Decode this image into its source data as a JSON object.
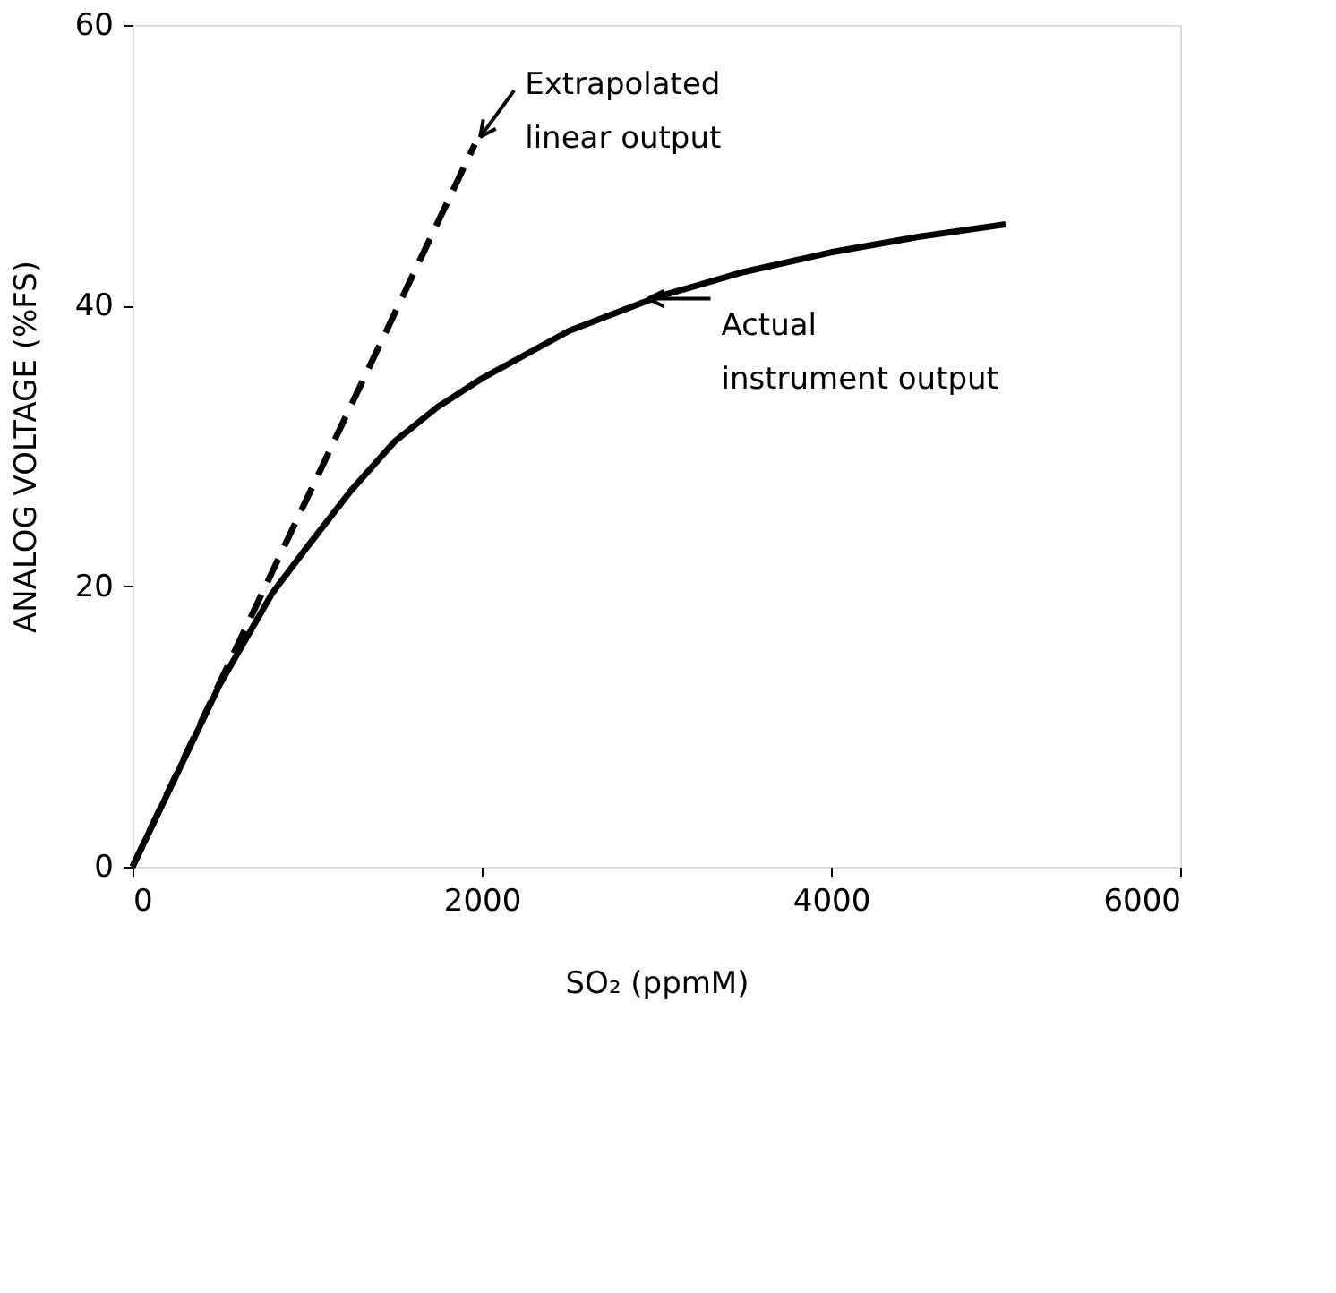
{
  "chart_data": {
    "type": "line",
    "xlabel": "SO₂ (ppmM)",
    "ylabel": "ANALOG VOLTAGE (%FS)",
    "xlim": [
      0,
      6000
    ],
    "xticks": [
      0,
      2000,
      4000,
      6000
    ],
    "ylim": [
      0,
      60
    ],
    "yticks": [
      0,
      20,
      40,
      60
    ],
    "grid": false,
    "series": [
      {
        "color": "#000000",
        "line_style": "solid",
        "x": [
          0,
          250,
          500,
          800,
          1000,
          1250,
          1500,
          1750,
          2000,
          2500,
          3000,
          3500,
          4000,
          4500,
          5000
        ],
        "values": [
          0,
          6.5,
          13,
          19.5,
          22.8,
          26.8,
          30.3,
          32.8,
          34.8,
          38.2,
          40.6,
          42.4,
          43.8,
          44.9,
          45.8
        ]
      },
      {
        "color": "#000000",
        "line_style": "dashed",
        "x": [
          0,
          1960
        ],
        "values": [
          0,
          51.5
        ]
      }
    ],
    "annotations": [
      {
        "text": "Extrapolated\nlinear output",
        "x": 1960,
        "y": 51.5
      },
      {
        "text": "Actual\ninstrument output",
        "x": 2900,
        "y": 40.5
      }
    ]
  }
}
